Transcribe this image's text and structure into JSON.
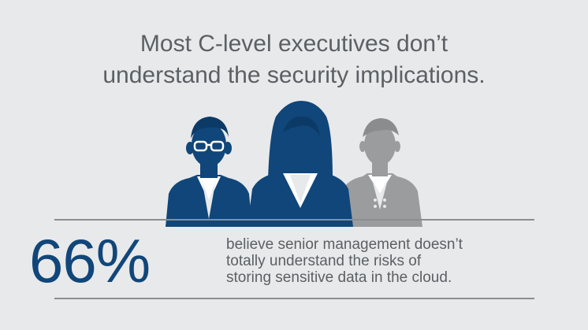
{
  "headline": {
    "line1": "Most C-level executives don’t",
    "line2": "understand the security implications."
  },
  "illustration": {
    "figures": [
      {
        "name": "man-with-glasses",
        "color": "#10467a"
      },
      {
        "name": "woman",
        "color": "#10467a"
      },
      {
        "name": "man",
        "color": "#9a9c9e"
      }
    ]
  },
  "stat": {
    "value": "66%",
    "description_lines": [
      "believe senior management doesn’t",
      "totally understand the risks of",
      "storing sensitive data in the cloud."
    ]
  },
  "colors": {
    "background": "#e8e9ea",
    "accent_blue": "#10467a",
    "muted_gray": "#9a9c9e",
    "text": "#5b6065"
  }
}
